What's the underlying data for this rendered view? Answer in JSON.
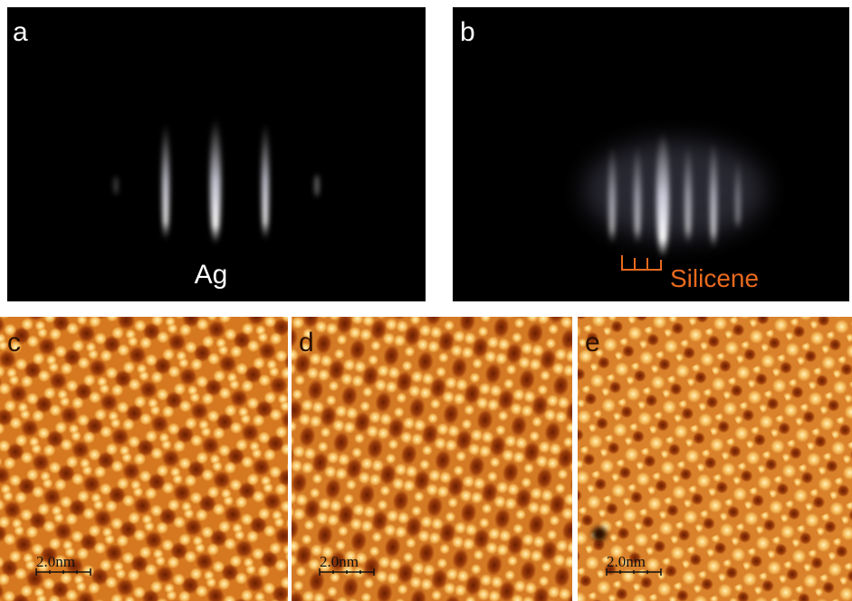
{
  "panels": [
    {
      "label": "a",
      "annotation": "Ag"
    },
    {
      "label": "b",
      "annotation": "Silicene"
    },
    {
      "label": "c",
      "scale_bar": "2.0nm"
    },
    {
      "label": "d",
      "scale_bar": "2.0nm"
    },
    {
      "label": "e",
      "scale_bar": "2.0nm"
    }
  ]
}
